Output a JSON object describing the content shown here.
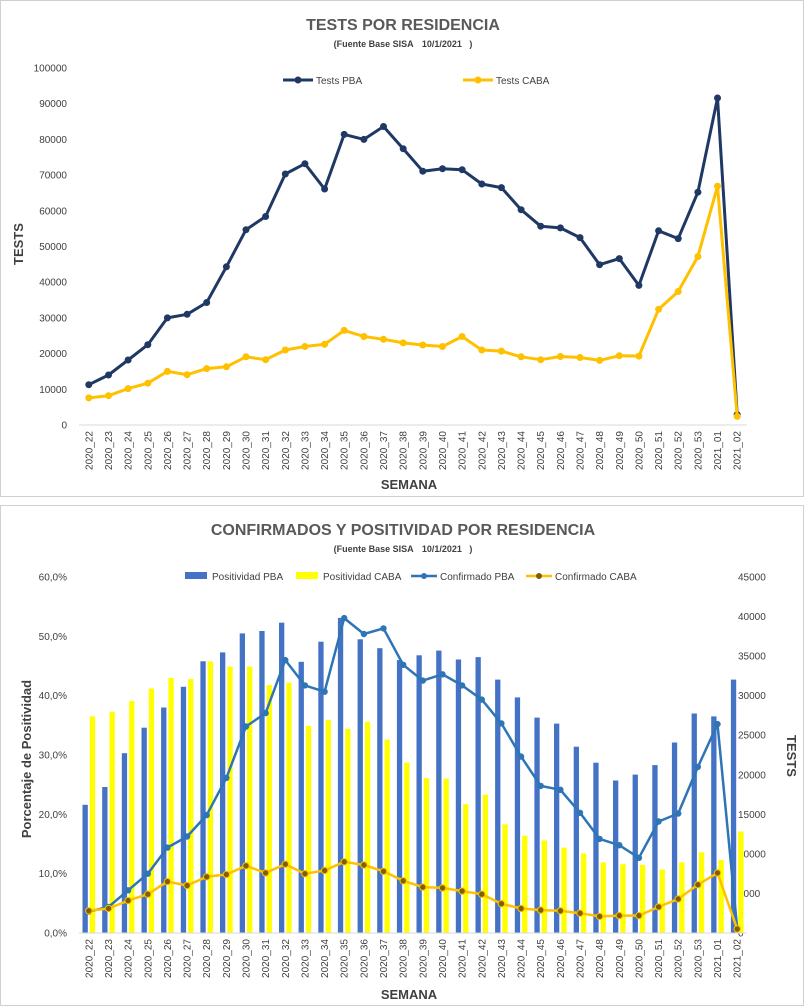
{
  "chart_data": [
    {
      "type": "line",
      "title": "TESTS POR RESIDENCIA",
      "subtitle_prefix": "(Fuente Base SISA",
      "subtitle_date": "10/1/2021",
      "subtitle_suffix": ")",
      "xlabel": "SEMANA",
      "ylabel": "TESTS",
      "ylim": [
        0,
        100000
      ],
      "yticks": [
        "0",
        "10000",
        "20000",
        "30000",
        "40000",
        "50000",
        "60000",
        "70000",
        "80000",
        "90000",
        "100000"
      ],
      "grid": false,
      "legend_position": "top-center",
      "categories": [
        "2020_22",
        "2020_23",
        "2020_24",
        "2020_25",
        "2020_26",
        "2020_27",
        "2020_28",
        "2020_29",
        "2020_30",
        "2020_31",
        "2020_32",
        "2020_33",
        "2020_34",
        "2020_35",
        "2020_36",
        "2020_37",
        "2020_38",
        "2020_39",
        "2020_40",
        "2020_41",
        "2020_42",
        "2020_43",
        "2020_44",
        "2020_45",
        "2020_46",
        "2020_47",
        "2020_48",
        "2020_49",
        "2020_50",
        "2020_51",
        "2020_52",
        "2020_53",
        "2021_01",
        "2021_02"
      ],
      "series": [
        {
          "name": "Tests PBA",
          "color": "#1f3864",
          "values": [
            11300,
            14000,
            18200,
            22500,
            30000,
            31000,
            34300,
            44300,
            54700,
            58400,
            70300,
            73200,
            66100,
            81400,
            80000,
            83600,
            77400,
            71100,
            71800,
            71500,
            67500,
            66500,
            60300,
            55700,
            55200,
            52500,
            44900,
            46600,
            39100,
            54400,
            52200,
            65200,
            91600,
            2900
          ]
        },
        {
          "name": "Tests CABA",
          "color": "#ffc000",
          "values": [
            7600,
            8200,
            10200,
            11700,
            15000,
            14100,
            15800,
            16300,
            19100,
            18300,
            21000,
            22000,
            22600,
            26500,
            24800,
            24000,
            23000,
            22400,
            22000,
            24800,
            21000,
            20700,
            19100,
            18300,
            19200,
            18900,
            18100,
            19400,
            19300,
            32400,
            37400,
            47200,
            66900,
            2400
          ]
        }
      ]
    },
    {
      "type": "bar",
      "title": "CONFIRMADOS Y POSITIVIDAD POR RESIDENCIA",
      "subtitle_prefix": "(Fuente Base SISA",
      "subtitle_date": "10/1/2021",
      "subtitle_suffix": ")",
      "xlabel": "SEMANA",
      "ylabel": "Porcentaje de Positividad",
      "y2label": "TESTS",
      "ylim": [
        0,
        60
      ],
      "y2lim": [
        0,
        45000
      ],
      "yticks": [
        "0,0%",
        "10,0%",
        "20,0%",
        "30,0%",
        "40,0%",
        "50,0%",
        "60,0%"
      ],
      "y2ticks": [
        "0",
        "5000",
        "10000",
        "15000",
        "20000",
        "25000",
        "30000",
        "35000",
        "40000",
        "45000"
      ],
      "grid": false,
      "legend_position": "top",
      "categories": [
        "2020_22",
        "2020_23",
        "2020_24",
        "2020_25",
        "2020_26",
        "2020_27",
        "2020_28",
        "2020_29",
        "2020_30",
        "2020_31",
        "2020_32",
        "2020_33",
        "2020_34",
        "2020_35",
        "2020_36",
        "2020_37",
        "2020_38",
        "2020_39",
        "2020_40",
        "2020_41",
        "2020_42",
        "2020_43",
        "2020_44",
        "2020_45",
        "2020_46",
        "2020_47",
        "2020_48",
        "2020_49",
        "2020_50",
        "2020_51",
        "2020_52",
        "2020_53",
        "2021_01",
        "2021_02"
      ],
      "bar_series": [
        {
          "name": "Positividad PBA",
          "color": "#4472c4",
          "values": [
            21.6,
            24.6,
            30.3,
            34.6,
            38.0,
            41.5,
            45.8,
            47.3,
            50.5,
            50.9,
            52.3,
            45.7,
            49.1,
            53.1,
            49.5,
            48.0,
            46.0,
            46.8,
            47.6,
            46.1,
            46.5,
            42.7,
            39.7,
            36.3,
            35.3,
            31.4,
            28.7,
            25.7,
            26.7,
            28.3,
            32.1,
            37.0,
            36.5,
            42.7
          ]
        },
        {
          "name": "Positividad CABA",
          "color": "#ffff00",
          "values": [
            36.5,
            37.3,
            39.1,
            41.2,
            43.0,
            42.8,
            45.8,
            44.9,
            44.9,
            41.8,
            42.2,
            34.9,
            35.9,
            34.4,
            35.6,
            32.6,
            28.7,
            26.1,
            26.0,
            21.7,
            23.3,
            18.3,
            16.4,
            15.6,
            14.4,
            13.4,
            11.9,
            11.6,
            11.5,
            10.7,
            11.9,
            13.6,
            12.3,
            17.1
          ]
        }
      ],
      "line_series": [
        {
          "name": "Confirmado PBA",
          "color": "#2e75b6",
          "values": [
            2700,
            3300,
            5400,
            7500,
            10800,
            12200,
            14900,
            19600,
            26100,
            27800,
            34500,
            31300,
            30500,
            39800,
            37800,
            38500,
            33900,
            31900,
            32700,
            31300,
            29500,
            26500,
            22300,
            18600,
            18100,
            15200,
            11900,
            11100,
            9500,
            14100,
            15100,
            21000,
            26400,
            600
          ]
        },
        {
          "name": "Confirmado CABA",
          "color": "#ffc000",
          "values": [
            2800,
            3100,
            4100,
            4900,
            6500,
            6000,
            7100,
            7400,
            8500,
            7600,
            8700,
            7500,
            7900,
            9000,
            8600,
            7800,
            6600,
            5800,
            5700,
            5300,
            4900,
            3700,
            3100,
            2900,
            2800,
            2500,
            2100,
            2200,
            2200,
            3300,
            4300,
            6100,
            7600,
            500
          ]
        }
      ]
    }
  ]
}
